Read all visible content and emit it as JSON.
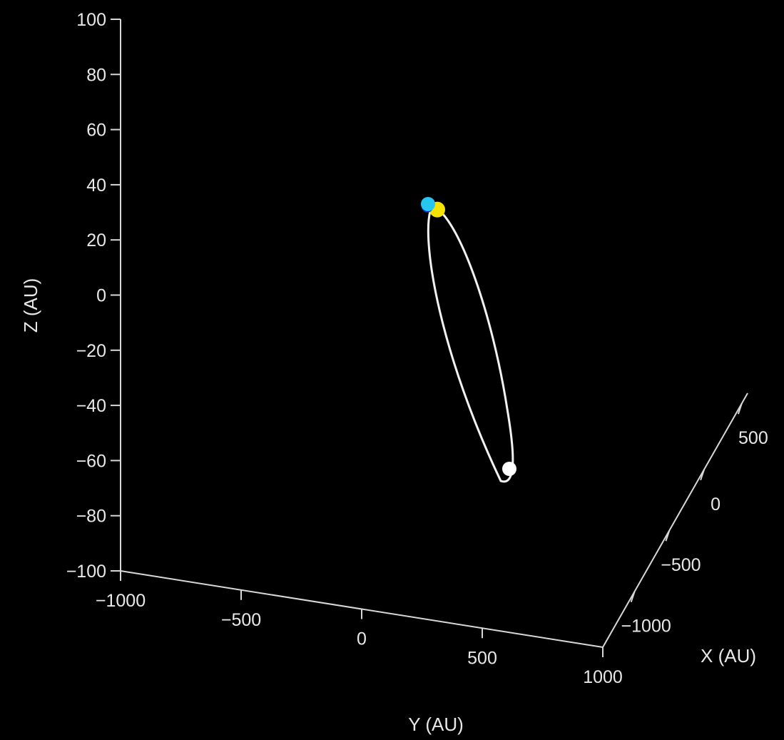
{
  "chart_data": {
    "type": "scatter",
    "subtype": "3d-orbit",
    "title": "",
    "axes": {
      "z": {
        "label": "Z (AU)",
        "range": [
          -100,
          100
        ],
        "ticks": [
          "100",
          "80",
          "60",
          "40",
          "20",
          "0",
          "−20",
          "−40",
          "−60",
          "−80",
          "−100"
        ]
      },
      "y": {
        "label": "Y (AU)",
        "range": [
          -1000,
          1000
        ],
        "ticks": [
          "−1000",
          "−500",
          "0",
          "500",
          "1000"
        ]
      },
      "x": {
        "label": "X (AU)",
        "range": [
          -1000,
          1000
        ],
        "ticks": [
          "−1000",
          "−500",
          "0",
          "500"
        ]
      }
    },
    "grid": false,
    "background": "#000000",
    "series": [
      {
        "type": "orbit",
        "color": "#f2f2f2"
      },
      {
        "type": "marker",
        "color": "#ffffff",
        "z": -63
      },
      {
        "type": "marker",
        "color": "#f5e400",
        "z": 31
      },
      {
        "type": "marker",
        "color": "#1830a8",
        "z": 32
      },
      {
        "type": "marker",
        "color": "#26c6f2",
        "z": 33
      }
    ]
  }
}
